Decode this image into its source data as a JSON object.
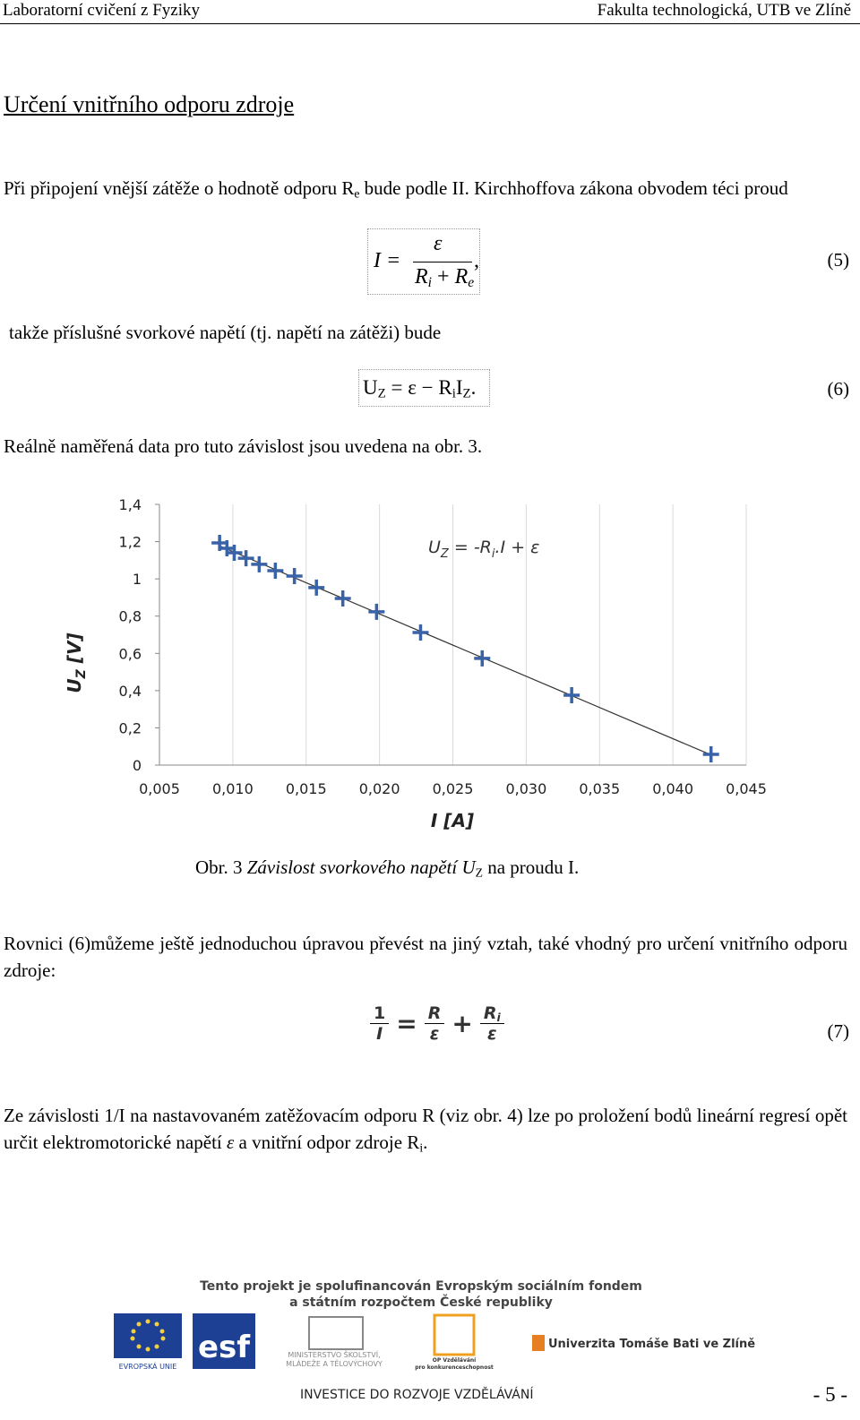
{
  "header": {
    "left": "Laboratorní cvičení z Fyziky",
    "right": "Fakulta technologická, UTB ve Zlíně"
  },
  "heading": "Určení vnitřního odporu zdroje",
  "p1": {
    "a": "Při připojení vnější zátěže o hodnotě odporu R",
    "sub": "e",
    "b": " bude podle II. Kirchhoffova zákona obvodem téci proud"
  },
  "eq5": {
    "lhs": "I =",
    "num": "ε",
    "den_a": "R",
    "den_a_sub": "i",
    "den_op": "+",
    "den_b": "R",
    "den_b_sub": "e",
    "tail": ",",
    "number": "(5)"
  },
  "p2": "takže příslušné svorkové napětí (tj. napětí na zátěži) bude",
  "eq6": {
    "a": "U",
    "a_sub": "Z",
    "b": "= ε − R",
    "b_sub": "i",
    "c": "I",
    "c_sub": "Z",
    "tail": ".",
    "number": "(6)"
  },
  "p3": "Reálně naměřená data pro tuto závislost jsou uvedena na obr. 3.",
  "chart_data": {
    "type": "scatter",
    "marker": "plus",
    "color": "#3a62a7",
    "trendline": true,
    "grid": "x",
    "x": [
      0.0091,
      0.0096,
      0.0101,
      0.0109,
      0.0118,
      0.0129,
      0.0142,
      0.0157,
      0.0175,
      0.0198,
      0.0228,
      0.027,
      0.0331,
      0.0426
    ],
    "values": [
      1.193,
      1.164,
      1.14,
      1.111,
      1.078,
      1.044,
      1.015,
      0.953,
      0.895,
      0.823,
      0.712,
      0.573,
      0.375,
      0.058
    ],
    "xlim": [
      0.005,
      0.045
    ],
    "ylim": [
      0,
      1.4
    ],
    "xticks": [
      {
        "value": 0.005,
        "label": "0,005"
      },
      {
        "value": 0.01,
        "label": "0,010"
      },
      {
        "value": 0.015,
        "label": "0,015"
      },
      {
        "value": 0.02,
        "label": "0,020"
      },
      {
        "value": 0.025,
        "label": "0,025"
      },
      {
        "value": 0.03,
        "label": "0,030"
      },
      {
        "value": 0.035,
        "label": "0,035"
      },
      {
        "value": 0.04,
        "label": "0,040"
      },
      {
        "value": 0.045,
        "label": "0,045"
      }
    ],
    "yticks": [
      0,
      {
        "value": 0.2,
        "label": "0,2"
      },
      {
        "value": 0.4,
        "label": "0,4"
      },
      {
        "value": 0.6,
        "label": "0,6"
      },
      {
        "value": 0.8,
        "label": "0,8"
      },
      1,
      {
        "value": 1.2,
        "label": "1,2"
      },
      {
        "value": 1.4,
        "label": "1,4"
      }
    ],
    "xlabel": "I [A]",
    "ylabel": {
      "a": "U",
      "sub": "Z",
      "b": " [V]"
    },
    "annotation": {
      "a": "U",
      "a_sub": "Z",
      "b": " =  -R",
      "b_sub": "i",
      "c": ".I + ε"
    }
  },
  "caption": {
    "a": "Obr. 3 ",
    "italic": "Závislost svorkového napětí U",
    "sub": "Z",
    "b": " na proudu I."
  },
  "p4": "Rovnici (6)můžeme ještě jednoduchou úpravou převést na jiný vztah, také vhodný pro určení vnitřního odporu zdroje:",
  "eq7": {
    "n1": "1",
    "d1": "I",
    "eq": "=",
    "n2": "R",
    "d2": "ε",
    "plus": "+",
    "n3": "R",
    "n3_sub": "i",
    "d3": "ε",
    "number": "(7)"
  },
  "p5": {
    "a": "Ze závislosti 1/I na nastavovaném zatěžovacím odporu R (viz obr. 4) lze po proložení bodů lineární regresí opět určit elektromotorické napětí ",
    "eps": "ε",
    "b": " a vnitřní odpor zdroje R",
    "sub": "i",
    "c": "."
  },
  "footer": {
    "line1": "Tento projekt je spolufinancován Evropským sociálním fondem",
    "line2": "a státním rozpočtem České republiky",
    "eu": "EVROPSKÁ UNIE",
    "esf": "esf",
    "msmt1": "MINISTERSTVO ŠKOLSTVÍ,",
    "msmt2": "MLÁDEŽE A TĚLOVÝCHOVY",
    "op1": "OP Vzdělávání",
    "op2": "pro konkurenceschopnost",
    "utb": "Univerzita Tomáše Bati ve Zlíně",
    "investice": "INVESTICE DO ROZVOJE VZDĚLÁVÁNÍ",
    "page": "- 5 -"
  }
}
